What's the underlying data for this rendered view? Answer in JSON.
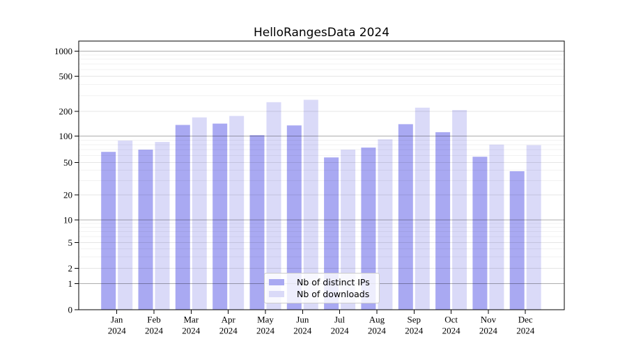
{
  "chart_data": {
    "type": "bar",
    "title": "HelloRangesData 2024",
    "categories": [
      "Jan 2024",
      "Feb 2024",
      "Mar 2024",
      "Apr 2024",
      "May 2024",
      "Jun 2024",
      "Jul 2024",
      "Aug 2024",
      "Sep 2024",
      "Oct 2024",
      "Nov 2024",
      "Dec 2024"
    ],
    "series": [
      {
        "name": "Nb of distinct IPs",
        "color": "#a9a9f2",
        "values": [
          66,
          70,
          137,
          142,
          103,
          135,
          57,
          74,
          140,
          112,
          58,
          39
        ]
      },
      {
        "name": "Nb of downloads",
        "color": "#dadaf8",
        "values": [
          89,
          86,
          169,
          176,
          254,
          270,
          70,
          92,
          220,
          207,
          80,
          79
        ]
      }
    ],
    "yscale": "symlog",
    "yticks": [
      0,
      1,
      2,
      5,
      10,
      20,
      50,
      100,
      200,
      500,
      1000
    ],
    "ylim": [
      0,
      1000
    ],
    "xlabel": "",
    "ylabel": "",
    "grid": true,
    "legend_position": "lower center"
  }
}
